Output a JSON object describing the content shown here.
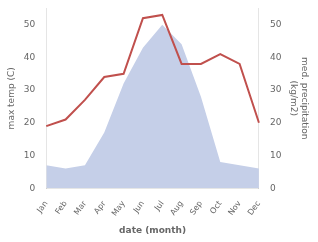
{
  "chart_data": {
    "type": "line",
    "xlabel": "date (month)",
    "ylabel": "max temp (C)",
    "y2label": "med. precipitation\n(kg/m2)",
    "categories": [
      "Jan",
      "Feb",
      "Mar",
      "Apr",
      "May",
      "Jun",
      "Jul",
      "Aug",
      "Sep",
      "Oct",
      "Nov",
      "Dec"
    ],
    "series": [
      {
        "type": "line",
        "color": "#c0504d",
        "values": [
          19,
          21,
          27,
          34,
          35,
          52,
          53,
          38,
          38,
          41,
          38,
          20
        ]
      },
      {
        "type": "area",
        "color": "#c5cfe8",
        "axis": "y2",
        "values": [
          7,
          6,
          7,
          17,
          32,
          43,
          50,
          44,
          28,
          8,
          7,
          6
        ]
      }
    ],
    "ylim": [
      0,
      55
    ],
    "yticks": [
      0,
      10,
      20,
      30,
      40,
      50
    ],
    "y2lim": [
      0,
      55
    ],
    "y2ticks": [
      0,
      10,
      20,
      30,
      40,
      50
    ],
    "grid": false
  }
}
